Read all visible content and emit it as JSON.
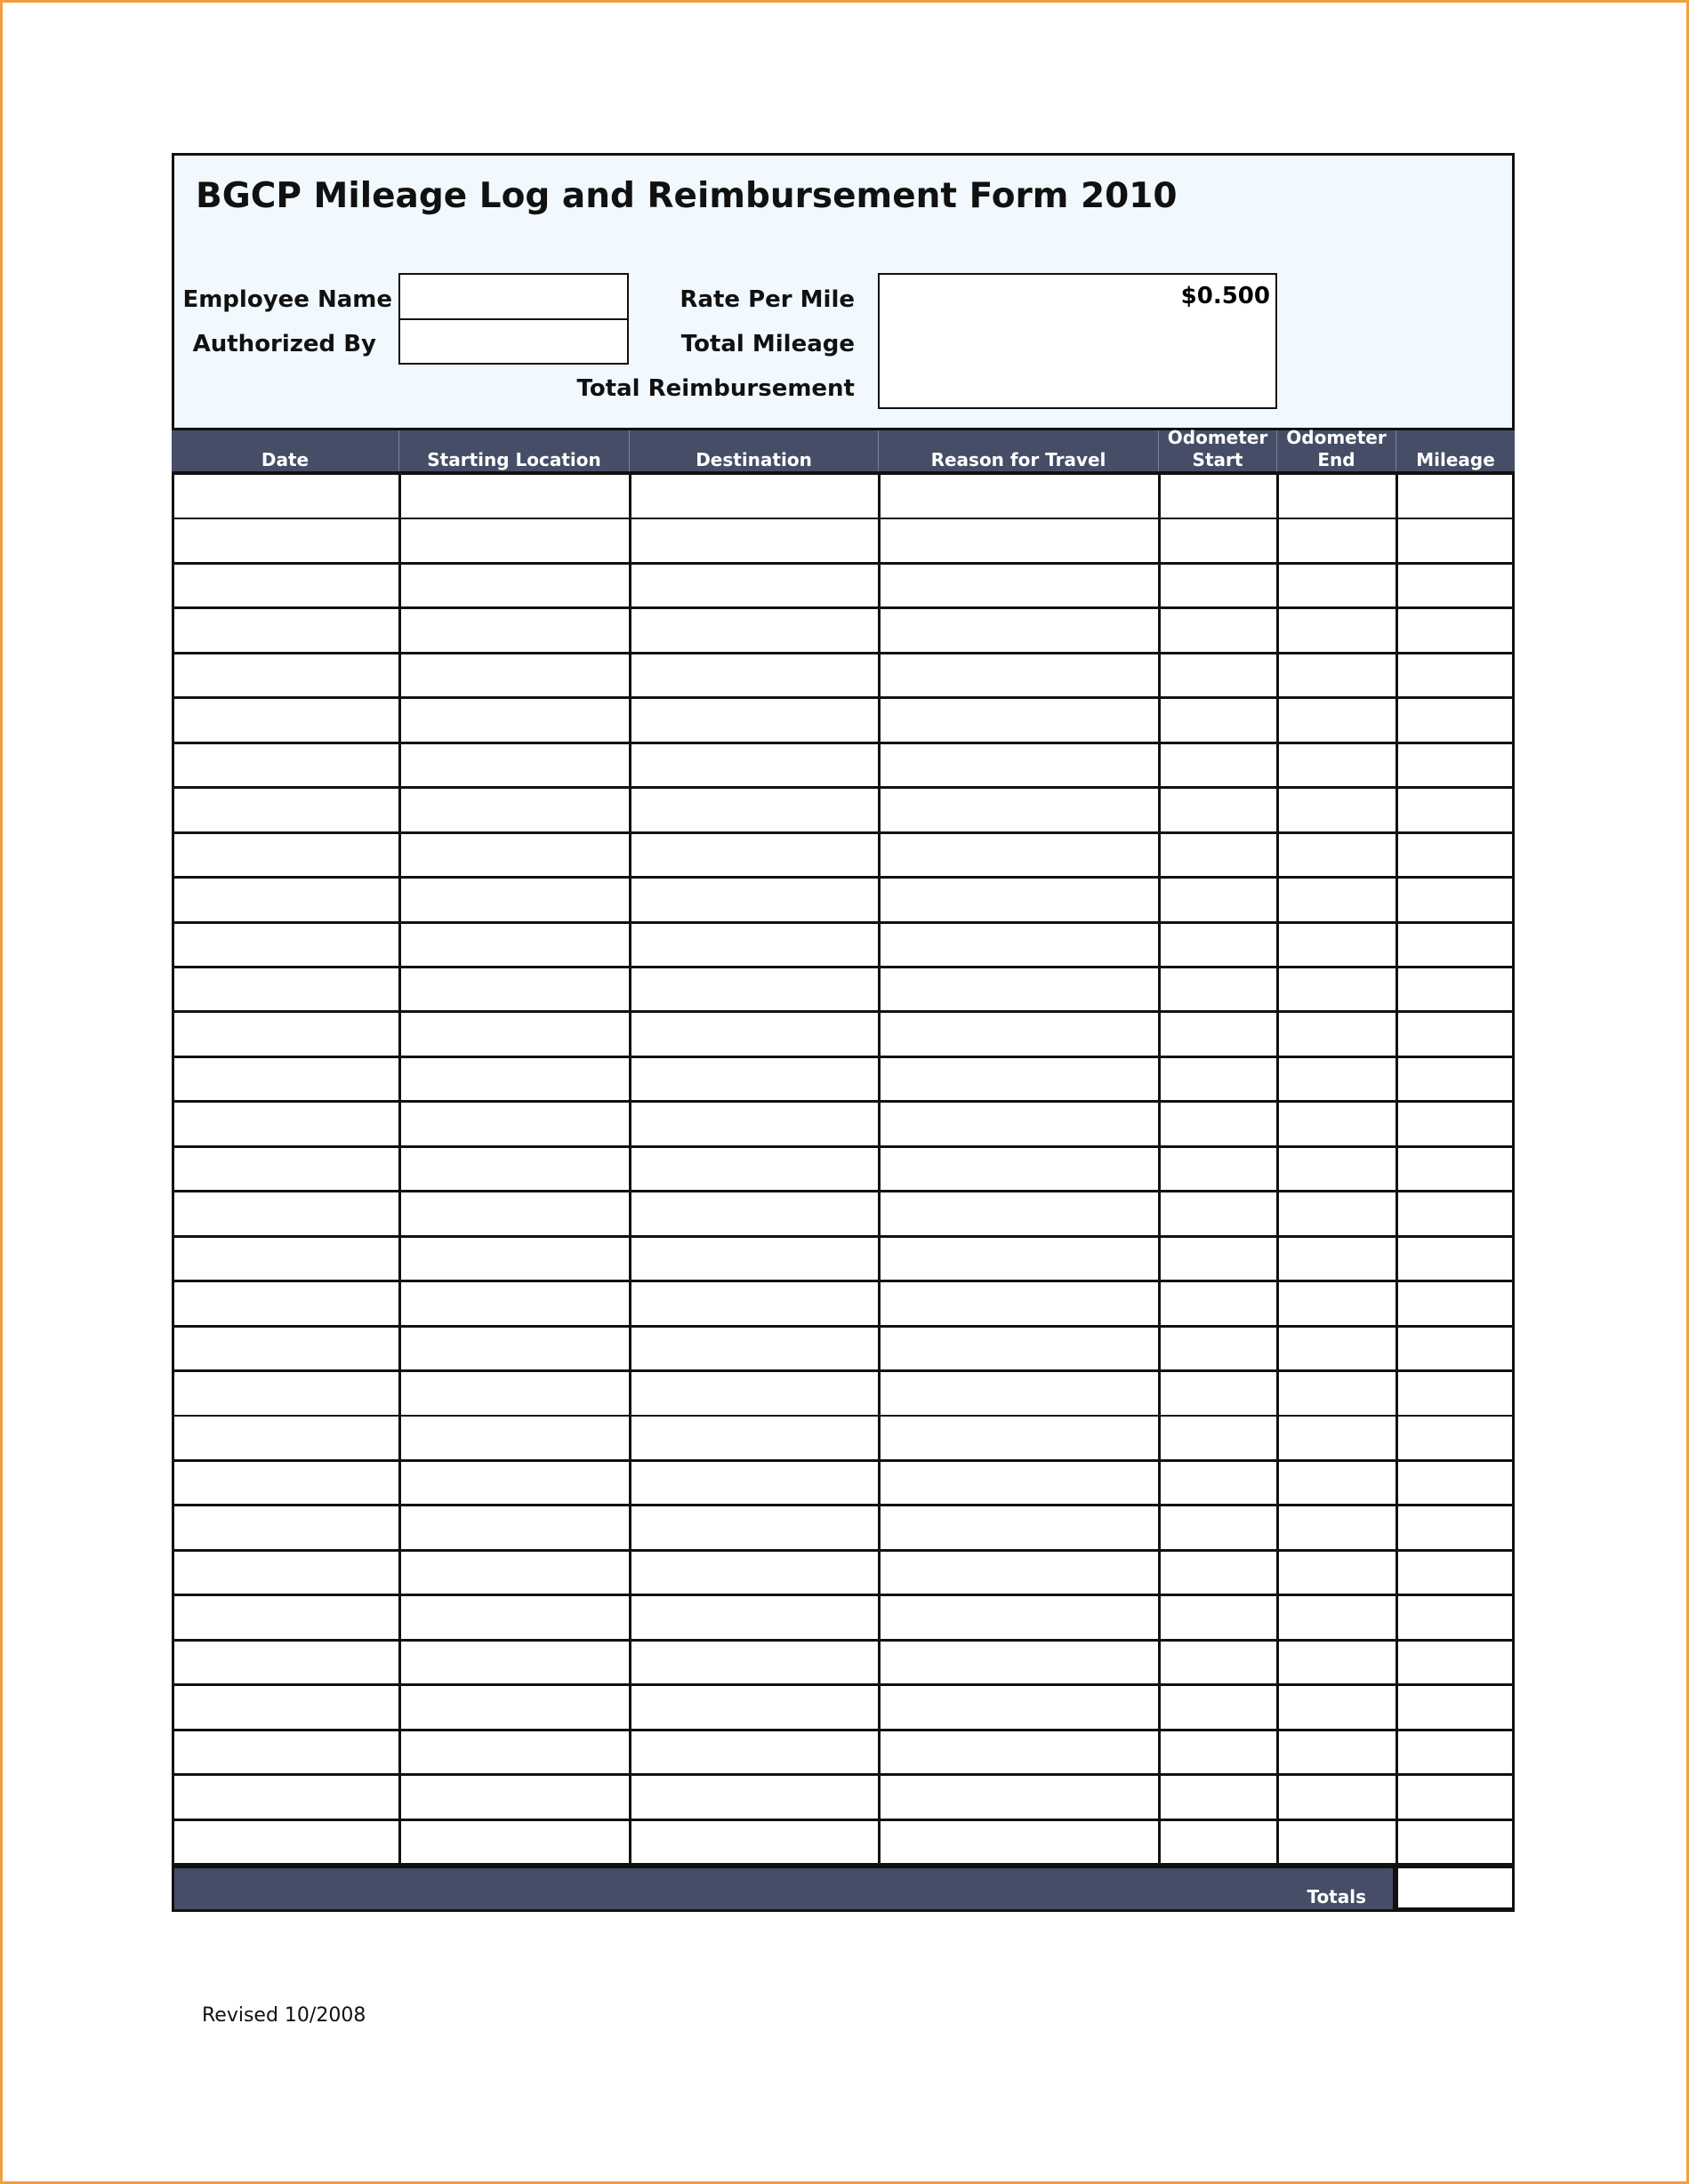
{
  "form": {
    "title": "BGCP Mileage Log and Reimbursement Form 2010",
    "employee_name_label": "Employee Name",
    "employee_name_value": "",
    "authorized_by_label": "Authorized By",
    "authorized_by_value": "",
    "rate_per_mile_label": "Rate Per Mile",
    "rate_per_mile_value": "$0.500",
    "total_mileage_label": "Total Mileage",
    "total_mileage_value": "",
    "total_reimbursement_label": "Total Reimbursement",
    "total_reimbursement_value": ""
  },
  "table": {
    "columns": [
      {
        "line1": "",
        "line2": "Date"
      },
      {
        "line1": "",
        "line2": "Starting Location"
      },
      {
        "line1": "",
        "line2": "Destination"
      },
      {
        "line1": "",
        "line2": "Reason for Travel"
      },
      {
        "line1": "Odometer",
        "line2": "Start"
      },
      {
        "line1": "Odometer",
        "line2": "End"
      },
      {
        "line1": "",
        "line2": "Mileage"
      }
    ],
    "totals_label": "Totals",
    "totals_value": ""
  },
  "footer": {
    "revised": "Revised 10/2008"
  },
  "colors": {
    "header_bg": "#454e66",
    "top_area_bg": "#f1f9fe",
    "page_border": "#f0a040"
  }
}
